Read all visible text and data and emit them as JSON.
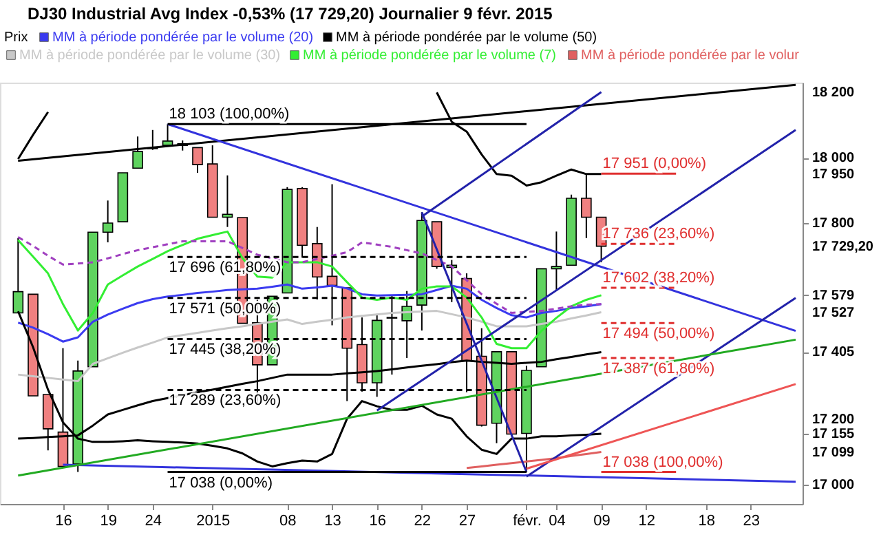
{
  "chart_data": {
    "type": "candlestick",
    "title": "DJ30 Industrial Avg Index   -0,53% (17 729,20)   Journalier   9 févr. 2015",
    "legend_title": "Prix",
    "legend": "top left",
    "grid": false,
    "categories": [
      null,
      null,
      null,
      "16",
      null,
      null,
      "19",
      null,
      null,
      "24",
      null,
      null,
      null,
      "2015",
      null,
      null,
      null,
      null,
      "08",
      null,
      null,
      "13",
      null,
      null,
      "16",
      null,
      null,
      "22",
      null,
      null,
      "27",
      null,
      null,
      null,
      "févr.",
      null,
      "04",
      null,
      null,
      "09",
      null,
      null,
      "12",
      null,
      null,
      null,
      "18",
      null,
      null,
      "23",
      null,
      null,
      null
    ],
    "ohlc": [
      [
        17525,
        17754,
        17525,
        17590
      ],
      [
        17582,
        17582,
        17271,
        17271
      ],
      [
        17275,
        17275,
        17104,
        17170
      ],
      [
        17160,
        17417,
        17055,
        17055
      ],
      [
        17062,
        17379,
        17038,
        17347
      ],
      [
        17360,
        17772,
        17360,
        17772
      ],
      [
        17772,
        17869,
        17741,
        17800
      ],
      [
        17804,
        17954,
        17804,
        17954
      ],
      [
        17968,
        18065,
        17968,
        18019
      ],
      [
        18030,
        18085,
        18024,
        18028
      ],
      [
        18038,
        18103,
        18038,
        18051
      ],
      [
        18043,
        18053,
        18022,
        18038
      ],
      [
        18031,
        18031,
        17954,
        17979
      ],
      [
        17981,
        18038,
        17818,
        17818
      ],
      [
        17818,
        17946,
        17788,
        17827
      ],
      [
        17817,
        17817,
        17493,
        17493
      ],
      [
        17495,
        17565,
        17248,
        17366
      ],
      [
        17366,
        17576,
        17366,
        17576
      ],
      [
        17586,
        17910,
        17586,
        17903
      ],
      [
        17906,
        17910,
        17694,
        17732
      ],
      [
        17737,
        17788,
        17566,
        17635
      ],
      [
        17637,
        17919,
        17487,
        17609
      ],
      [
        17602,
        17602,
        17255,
        17417
      ],
      [
        17428,
        17511,
        17284,
        17311
      ],
      [
        17311,
        17522,
        17268,
        17502
      ],
      [
        17509,
        17579,
        17336,
        17511
      ],
      [
        17501,
        17592,
        17387,
        17545
      ],
      [
        17549,
        17833,
        17471,
        17808
      ],
      [
        17804,
        17804,
        17660,
        17667
      ],
      [
        17664,
        17687,
        17558,
        17671
      ],
      [
        17630,
        17646,
        17282,
        17379
      ],
      [
        17392,
        17478,
        17177,
        17181
      ],
      [
        17187,
        17406,
        17126,
        17406
      ],
      [
        17406,
        17406,
        17147,
        17154
      ],
      [
        17156,
        17363,
        17038,
        17349
      ],
      [
        17360,
        17660,
        17360,
        17660
      ],
      [
        17660,
        17774,
        17592,
        17667
      ],
      [
        17671,
        17887,
        17671,
        17876
      ],
      [
        17876,
        17951,
        17754,
        17818
      ],
      [
        17818,
        17818,
        17680,
        17729.2
      ],
      null,
      null,
      null,
      null,
      null,
      null,
      null,
      null,
      null,
      null,
      null,
      null,
      null
    ],
    "colors": [
      "#5fd35f",
      "#f08080",
      "#f08080",
      "#f08080",
      "#5fd35f",
      "#5fd35f",
      "#5fd35f",
      "#5fd35f",
      "#5fd35f",
      "#f08080",
      "#5fd35f",
      "#f08080",
      "#f08080",
      "#f08080",
      "#5fd35f",
      "#f08080",
      "#f08080",
      "#5fd35f",
      "#5fd35f",
      "#f08080",
      "#f08080",
      "#f08080",
      "#f08080",
      "#f08080",
      "#5fd35f",
      "#5fd35f",
      "#5fd35f",
      "#5fd35f",
      "#f08080",
      "#5fd35f",
      "#f08080",
      "#f08080",
      "#5fd35f",
      "#f08080",
      "#5fd35f",
      "#5fd35f",
      "#5fd35f",
      "#5fd35f",
      "#f08080",
      "#f08080",
      null,
      null,
      null,
      null,
      null,
      null,
      null,
      null,
      null,
      null,
      null,
      null,
      null
    ],
    "ylim": [
      16940,
      18230
    ],
    "yticks": [
      {
        "value": 17000,
        "label": "17 000"
      },
      {
        "value": 17099,
        "label": "17 099"
      },
      {
        "value": 17155,
        "label": "17 155"
      },
      {
        "value": 17200,
        "label": "17 200"
      },
      {
        "value": 17405,
        "label": "17 405"
      },
      {
        "value": 17527,
        "label": "17 527"
      },
      {
        "value": 17579,
        "label": "17 579"
      },
      {
        "value": 17729.2,
        "label": "17 729,20"
      },
      {
        "value": 17800,
        "label": "17 800"
      },
      {
        "value": 17950,
        "label": "17 950"
      },
      {
        "value": 18000,
        "label": "18 000"
      },
      {
        "value": 18200,
        "label": "18 200"
      }
    ],
    "series": [
      {
        "type": "line",
        "name": "MM à période pondérée par le volume (20)",
        "color": "#3b3bf0",
        "values": [
          17495,
          17480,
          17460,
          17437,
          17450,
          17498,
          17520,
          17538,
          17555,
          17567,
          17575,
          17580,
          17586,
          17590,
          17595,
          17597,
          17599,
          17605,
          17612,
          17599,
          17603,
          17608,
          17600,
          17582,
          17578,
          17579,
          17580,
          17582,
          17595,
          17608,
          17599,
          17565,
          17540,
          17518,
          17511,
          17525,
          17531,
          17540,
          17545,
          17552,
          null,
          null,
          null,
          null,
          null,
          null,
          null,
          null,
          null,
          null,
          null,
          null,
          null
        ]
      },
      {
        "type": "line",
        "name": "MM à période pondérée par le volume (50)",
        "color": "#000000",
        "values": [
          17140,
          17142,
          17145,
          17147,
          17150,
          17180,
          17214,
          17228,
          17242,
          17255,
          17264,
          17273,
          17282,
          17290,
          17299,
          17308,
          17316,
          17326,
          17336,
          17336,
          17336,
          17336,
          17340,
          17343,
          17347,
          17352,
          17358,
          17363,
          17368,
          17374,
          17379,
          17375,
          17372,
          17369,
          17372,
          17375,
          17383,
          17390,
          17398,
          17405,
          null,
          null,
          null,
          null,
          null,
          null,
          null,
          null,
          null,
          null,
          null,
          null,
          null
        ]
      },
      {
        "type": "line",
        "name": "MM à période pondérée par le volume (30)",
        "color": "#c8c8c8",
        "values": [
          17336,
          17331,
          17326,
          17321,
          17316,
          17369,
          17386,
          17403,
          17419,
          17434,
          17450,
          17457,
          17464,
          17471,
          17478,
          17484,
          17491,
          17498,
          17505,
          17491,
          17498,
          17504,
          17511,
          17516,
          17520,
          17525,
          17527,
          17529,
          17531,
          17521,
          17511,
          17498,
          17484,
          17484,
          17484,
          17491,
          17498,
          17508,
          17517,
          17527,
          null,
          null,
          null,
          null,
          null,
          null,
          null,
          null,
          null,
          null,
          null,
          null,
          null
        ]
      },
      {
        "type": "line",
        "name": "MM à période pondérée par le volume (7)",
        "color": "#33ee33",
        "values": [
          17748,
          17697,
          17646,
          17552,
          17471,
          17525,
          17612,
          17640,
          17667,
          17690,
          17714,
          17733,
          17752,
          17763,
          17774,
          17693,
          17636,
          17633,
          17680,
          17680,
          17680,
          17667,
          17619,
          17572,
          17565,
          17572,
          17565,
          17599,
          17606,
          17606,
          17572,
          17511,
          17430,
          17417,
          17417,
          17470,
          17510,
          17545,
          17565,
          17579,
          null,
          null,
          null,
          null,
          null,
          null,
          null,
          null,
          null,
          null,
          null,
          null,
          null
        ]
      },
      {
        "type": "line",
        "name": "MM à période pondérée par le volur",
        "color": "#e06060",
        "values": [
          null,
          null,
          null,
          null,
          null,
          null,
          null,
          null,
          null,
          null,
          null,
          null,
          null,
          null,
          null,
          null,
          null,
          null,
          null,
          null,
          null,
          null,
          null,
          null,
          null,
          null,
          null,
          null,
          null,
          null,
          17050,
          17055,
          17060,
          17065,
          17070,
          17075,
          17080,
          17087,
          17093,
          17099,
          null,
          null,
          null,
          null,
          null,
          null,
          null,
          null,
          null,
          null,
          null,
          null,
          null
        ]
      },
      {
        "type": "line",
        "color": "#a040c0",
        "line_style": "dashed",
        "values": [
          17757,
          17730,
          17700,
          17673,
          17676,
          17680,
          17692,
          17705,
          17717,
          17726,
          17735,
          17744,
          17744,
          17744,
          17744,
          17724,
          17703,
          17692,
          17680,
          17680,
          17690,
          17700,
          17711,
          17741,
          17734,
          17727,
          17717,
          17707,
          17687,
          17667,
          17625,
          17582,
          17553,
          17525,
          17528,
          17531,
          17538,
          17545,
          17550,
          17552,
          null,
          null,
          null,
          null,
          null,
          null,
          null,
          null,
          null,
          null,
          null,
          null,
          null
        ]
      },
      {
        "type": "line",
        "color": "#000000",
        "values": [
          17996,
          18070,
          18140,
          null,
          null,
          null,
          null,
          null,
          null,
          null,
          null,
          null,
          null,
          null,
          null,
          null,
          null,
          null,
          null,
          null,
          null,
          null,
          null,
          null,
          null,
          null,
          null,
          null,
          null,
          null,
          null,
          null,
          null,
          null,
          null,
          null,
          null,
          null,
          null,
          null,
          null,
          null,
          null,
          null,
          null,
          null,
          null,
          null,
          null,
          null,
          null,
          null,
          null
        ]
      },
      {
        "type": "line",
        "color": "#000000",
        "values": [
          null,
          null,
          null,
          null,
          null,
          null,
          null,
          null,
          null,
          null,
          null,
          null,
          null,
          null,
          null,
          null,
          null,
          null,
          null,
          null,
          null,
          null,
          null,
          null,
          null,
          null,
          null,
          null,
          18200,
          18110,
          18080,
          18010,
          17950,
          17945,
          17915,
          17925,
          17945,
          17964,
          17950,
          17950,
          null,
          null,
          null,
          null,
          null,
          null,
          null,
          null,
          null,
          null,
          null,
          null,
          null
        ]
      },
      {
        "type": "line",
        "color": "#000000",
        "values": [
          17530,
          17420,
          17290,
          17190,
          17140,
          17130,
          17130,
          17132,
          17135,
          17132,
          17130,
          17128,
          17125,
          17118,
          17110,
          17095,
          17070,
          17055,
          17065,
          17073,
          17070,
          17093,
          17201,
          17255,
          17239,
          17228,
          17228,
          17241,
          17214,
          17201,
          17147,
          17106,
          17093,
          17140,
          17140,
          17147,
          17147,
          17150,
          17152,
          17155,
          null,
          null,
          null,
          null,
          null,
          null,
          null,
          null,
          null,
          null,
          null,
          null,
          null
        ]
      },
      {
        "type": "line",
        "color": "#000000",
        "values": [
          17991,
          null,
          null,
          null,
          null,
          null,
          null,
          null,
          null,
          null,
          null,
          null,
          null,
          null,
          null,
          null,
          null,
          null,
          null,
          null,
          null,
          null,
          null,
          null,
          null,
          null,
          null,
          null,
          null,
          null,
          null,
          null,
          null,
          null,
          null,
          null,
          null,
          null,
          null,
          null,
          null,
          null,
          null,
          null,
          null,
          null,
          null,
          null,
          null,
          null,
          null,
          null,
          18223
        ]
      },
      {
        "type": "line",
        "color": "#3333dd",
        "values": [
          null,
          null,
          null,
          null,
          null,
          null,
          null,
          null,
          null,
          null,
          18103,
          null,
          null,
          null,
          null,
          null,
          null,
          null,
          null,
          null,
          null,
          null,
          null,
          null,
          null,
          null,
          null,
          null,
          null,
          null,
          null,
          null,
          null,
          null,
          null,
          null,
          null,
          null,
          null,
          null,
          null,
          null,
          null,
          null,
          null,
          null,
          null,
          null,
          null,
          null,
          null,
          null,
          17470
        ]
      },
      {
        "type": "line",
        "color": "#3333dd",
        "values": [
          null,
          null,
          null,
          17060,
          null,
          null,
          null,
          null,
          null,
          null,
          null,
          null,
          null,
          null,
          null,
          null,
          null,
          null,
          null,
          null,
          null,
          null,
          null,
          null,
          null,
          null,
          null,
          null,
          null,
          null,
          null,
          null,
          null,
          null,
          null,
          null,
          null,
          null,
          null,
          null,
          null,
          null,
          null,
          null,
          null,
          null,
          null,
          null,
          null,
          null,
          null,
          null,
          17008
        ]
      },
      {
        "type": "line",
        "color": "#2222aa",
        "values": [
          null,
          null,
          null,
          null,
          null,
          null,
          null,
          null,
          null,
          null,
          null,
          null,
          null,
          null,
          null,
          null,
          null,
          null,
          null,
          null,
          null,
          null,
          null,
          null,
          null,
          null,
          null,
          17820,
          null,
          null,
          null,
          null,
          null,
          null,
          null,
          null,
          null,
          null,
          null,
          18201,
          null,
          null,
          null,
          null,
          null,
          null,
          null,
          null,
          null,
          null,
          null,
          null,
          null
        ]
      },
      {
        "type": "line",
        "color": "#2222aa",
        "values": [
          null,
          null,
          null,
          null,
          null,
          null,
          null,
          null,
          null,
          null,
          null,
          null,
          null,
          null,
          null,
          null,
          null,
          null,
          null,
          null,
          null,
          null,
          null,
          null,
          17226,
          null,
          null,
          null,
          null,
          null,
          null,
          null,
          null,
          null,
          null,
          null,
          null,
          null,
          null,
          null,
          null,
          null,
          null,
          null,
          null,
          null,
          null,
          null,
          null,
          null,
          null,
          null,
          18085
        ]
      },
      {
        "type": "line",
        "color": "#2222aa",
        "values": [
          null,
          null,
          null,
          null,
          null,
          null,
          null,
          null,
          null,
          null,
          null,
          null,
          null,
          null,
          null,
          null,
          null,
          null,
          null,
          null,
          null,
          null,
          null,
          null,
          null,
          null,
          null,
          null,
          null,
          null,
          null,
          null,
          null,
          null,
          17024,
          null,
          null,
          null,
          null,
          null,
          null,
          null,
          null,
          null,
          null,
          null,
          null,
          null,
          null,
          null,
          null,
          null,
          17571
        ]
      },
      {
        "type": "line",
        "color": "#2222aa",
        "values": [
          null,
          null,
          null,
          null,
          null,
          null,
          null,
          null,
          null,
          null,
          null,
          null,
          null,
          null,
          null,
          null,
          null,
          null,
          null,
          null,
          null,
          null,
          null,
          null,
          null,
          null,
          null,
          17833,
          null,
          null,
          null,
          null,
          null,
          null,
          17038,
          null,
          null,
          null,
          null,
          null,
          null,
          null,
          null,
          null,
          null,
          null,
          null,
          null,
          null,
          null,
          null,
          null,
          null
        ]
      },
      {
        "type": "line",
        "color": "#22aa22",
        "values": [
          17027,
          null,
          null,
          null,
          null,
          null,
          null,
          null,
          null,
          null,
          null,
          null,
          null,
          null,
          null,
          null,
          null,
          null,
          null,
          null,
          null,
          null,
          null,
          null,
          null,
          null,
          null,
          null,
          null,
          null,
          null,
          null,
          null,
          null,
          null,
          null,
          null,
          null,
          null,
          null,
          null,
          null,
          null,
          null,
          null,
          null,
          null,
          null,
          null,
          null,
          null,
          null,
          17443
        ]
      },
      {
        "type": "line",
        "color": "#ee5555",
        "values": [
          null,
          null,
          null,
          null,
          null,
          null,
          null,
          null,
          null,
          null,
          null,
          null,
          null,
          null,
          null,
          null,
          null,
          null,
          null,
          null,
          null,
          null,
          null,
          null,
          null,
          null,
          null,
          null,
          null,
          null,
          null,
          null,
          null,
          null,
          17048,
          null,
          null,
          null,
          null,
          null,
          null,
          null,
          null,
          null,
          null,
          null,
          null,
          null,
          null,
          null,
          null,
          null,
          17307
        ]
      },
      {
        "type": "line",
        "name": "18 103 (100,00%)",
        "color": "#000000",
        "values": [
          null,
          null,
          null,
          null,
          null,
          null,
          null,
          null,
          null,
          null,
          18103,
          null,
          null,
          null,
          null,
          null,
          null,
          null,
          null,
          null,
          null,
          null,
          null,
          null,
          null,
          null,
          null,
          null,
          null,
          null,
          null,
          null,
          null,
          null,
          18103,
          null,
          null,
          null,
          null,
          null,
          null,
          null,
          null,
          null,
          null,
          null,
          null,
          null,
          null,
          null,
          null,
          null,
          null
        ]
      },
      {
        "type": "line",
        "name": "17 696 (61,80%)",
        "color": "#000000",
        "line_style": "dashed",
        "values": [
          null,
          null,
          null,
          null,
          null,
          null,
          null,
          null,
          null,
          null,
          17696,
          null,
          null,
          null,
          null,
          null,
          null,
          null,
          null,
          null,
          null,
          null,
          null,
          null,
          null,
          null,
          null,
          null,
          null,
          null,
          null,
          null,
          null,
          null,
          17696,
          null,
          null,
          null,
          null,
          null,
          null,
          null,
          null,
          null,
          null,
          null,
          null,
          null,
          null,
          null,
          null,
          null,
          null
        ]
      },
      {
        "type": "line",
        "name": "17 571 (50,00%)",
        "color": "#000000",
        "line_style": "dashed",
        "values": [
          null,
          null,
          null,
          null,
          null,
          null,
          null,
          null,
          null,
          null,
          17571,
          null,
          null,
          null,
          null,
          null,
          null,
          null,
          null,
          null,
          null,
          null,
          null,
          null,
          null,
          null,
          null,
          null,
          null,
          null,
          null,
          null,
          null,
          null,
          17571,
          null,
          null,
          null,
          null,
          null,
          null,
          null,
          null,
          null,
          null,
          null,
          null,
          null,
          null,
          null,
          null,
          null,
          null
        ]
      },
      {
        "type": "line",
        "name": "17 445 (38,20%)",
        "color": "#000000",
        "line_style": "dashed",
        "values": [
          null,
          null,
          null,
          null,
          null,
          null,
          null,
          null,
          null,
          null,
          17445,
          null,
          null,
          null,
          null,
          null,
          null,
          null,
          null,
          null,
          null,
          null,
          null,
          null,
          null,
          null,
          null,
          null,
          null,
          null,
          null,
          null,
          null,
          null,
          17445,
          null,
          null,
          null,
          null,
          null,
          null,
          null,
          null,
          null,
          null,
          null,
          null,
          null,
          null,
          null,
          null,
          null,
          null
        ]
      },
      {
        "type": "line",
        "name": "17 289 (23,60%)",
        "color": "#000000",
        "line_style": "dashed",
        "values": [
          null,
          null,
          null,
          null,
          null,
          null,
          null,
          null,
          null,
          null,
          17289,
          null,
          null,
          null,
          null,
          null,
          null,
          null,
          null,
          null,
          null,
          null,
          null,
          null,
          null,
          null,
          null,
          null,
          null,
          null,
          null,
          null,
          null,
          null,
          17289,
          null,
          null,
          null,
          null,
          null,
          null,
          null,
          null,
          null,
          null,
          null,
          null,
          null,
          null,
          null,
          null,
          null,
          null
        ]
      },
      {
        "type": "line",
        "name": "17 038 (0,00%)",
        "color": "#000000",
        "values": [
          null,
          null,
          null,
          null,
          null,
          null,
          null,
          null,
          null,
          null,
          17038,
          null,
          null,
          null,
          null,
          null,
          null,
          null,
          null,
          null,
          null,
          null,
          null,
          null,
          null,
          null,
          null,
          null,
          null,
          null,
          null,
          null,
          null,
          null,
          17038,
          null,
          null,
          null,
          null,
          null,
          null,
          null,
          null,
          null,
          null,
          null,
          null,
          null,
          null,
          null,
          null,
          null,
          null
        ]
      },
      {
        "type": "line",
        "name": "17 951 (0,00%)",
        "color": "#e03030",
        "values": [
          null,
          null,
          null,
          null,
          null,
          null,
          null,
          null,
          null,
          null,
          null,
          null,
          null,
          null,
          null,
          null,
          null,
          null,
          null,
          null,
          null,
          null,
          null,
          null,
          null,
          null,
          null,
          null,
          null,
          null,
          null,
          null,
          null,
          null,
          null,
          null,
          null,
          null,
          null,
          17951,
          null,
          null,
          null,
          null,
          17951,
          null,
          null,
          null,
          null,
          null,
          null,
          null,
          null
        ]
      },
      {
        "type": "line",
        "name": "17 736 (23,60%)",
        "color": "#e03030",
        "line_style": "dashed",
        "values": [
          null,
          null,
          null,
          null,
          null,
          null,
          null,
          null,
          null,
          null,
          null,
          null,
          null,
          null,
          null,
          null,
          null,
          null,
          null,
          null,
          null,
          null,
          null,
          null,
          null,
          null,
          null,
          null,
          null,
          null,
          null,
          null,
          null,
          null,
          null,
          null,
          null,
          null,
          null,
          17736,
          null,
          null,
          null,
          null,
          17736,
          null,
          null,
          null,
          null,
          null,
          null,
          null,
          null
        ]
      },
      {
        "type": "line",
        "name": "17 602 (38,20%)",
        "color": "#e03030",
        "line_style": "dashed",
        "values": [
          null,
          null,
          null,
          null,
          null,
          null,
          null,
          null,
          null,
          null,
          null,
          null,
          null,
          null,
          null,
          null,
          null,
          null,
          null,
          null,
          null,
          null,
          null,
          null,
          null,
          null,
          null,
          null,
          null,
          null,
          null,
          null,
          null,
          null,
          null,
          null,
          null,
          null,
          null,
          17602,
          null,
          null,
          null,
          null,
          17602,
          null,
          null,
          null,
          null,
          null,
          null,
          null,
          null
        ]
      },
      {
        "type": "line",
        "name": "17 494 (50,00%)",
        "color": "#e03030",
        "line_style": "dashed",
        "values": [
          null,
          null,
          null,
          null,
          null,
          null,
          null,
          null,
          null,
          null,
          null,
          null,
          null,
          null,
          null,
          null,
          null,
          null,
          null,
          null,
          null,
          null,
          null,
          null,
          null,
          null,
          null,
          null,
          null,
          null,
          null,
          null,
          null,
          null,
          null,
          null,
          null,
          null,
          null,
          17494,
          null,
          null,
          null,
          null,
          17494,
          null,
          null,
          null,
          null,
          null,
          null,
          null,
          null
        ]
      },
      {
        "type": "line",
        "name": "17 387 (61,80%)",
        "color": "#e03030",
        "line_style": "dashed",
        "values": [
          null,
          null,
          null,
          null,
          null,
          null,
          null,
          null,
          null,
          null,
          null,
          null,
          null,
          null,
          null,
          null,
          null,
          null,
          null,
          null,
          null,
          null,
          null,
          null,
          null,
          null,
          null,
          null,
          null,
          null,
          null,
          null,
          null,
          null,
          null,
          null,
          null,
          null,
          null,
          17387,
          null,
          null,
          null,
          null,
          17387,
          null,
          null,
          null,
          null,
          null,
          null,
          null,
          null
        ]
      },
      {
        "type": "line",
        "name": "17 038 (100,00%)",
        "color": "#e03030",
        "values": [
          null,
          null,
          null,
          null,
          null,
          null,
          null,
          null,
          null,
          null,
          null,
          null,
          null,
          null,
          null,
          null,
          null,
          null,
          null,
          null,
          null,
          null,
          null,
          null,
          null,
          null,
          null,
          null,
          null,
          null,
          null,
          null,
          null,
          null,
          null,
          null,
          null,
          null,
          null,
          17038,
          null,
          null,
          null,
          null,
          17038,
          null,
          null,
          null,
          null,
          null,
          null,
          null,
          null
        ]
      }
    ]
  }
}
